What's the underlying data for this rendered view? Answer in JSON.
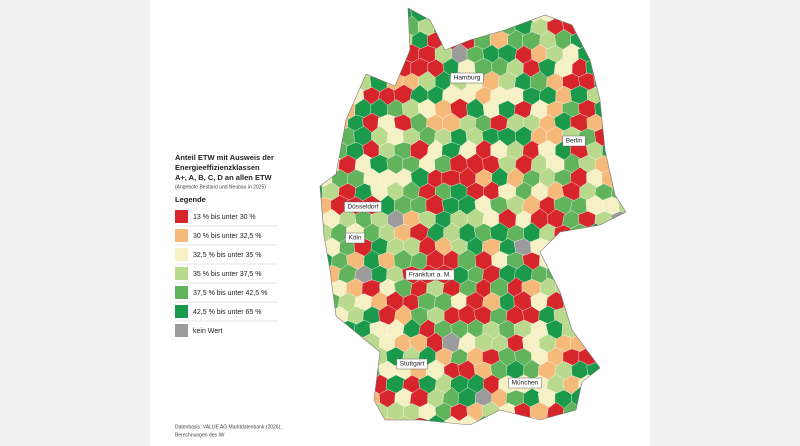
{
  "map": {
    "title_lines": [
      "Anteil ETW mit Ausweis der",
      "Energieeffizienzklassen",
      "A+, A, B, C, D an allen ETW"
    ],
    "subtitle": "(Angebote Bestand und Neubau in 2025)",
    "legend": {
      "title": "Legende",
      "items": [
        {
          "label": "13 % bis unter 30 %",
          "color": "#d7262b"
        },
        {
          "label": "30 % bis unter 32,5 %",
          "color": "#f5b97a"
        },
        {
          "label": "32,5 % bis unter 35 %",
          "color": "#f6f1c4"
        },
        {
          "label": "35 % bis unter 37,5 %",
          "color": "#b9d98c"
        },
        {
          "label": "37,5 % bis unter 42,5 %",
          "color": "#62b45c"
        },
        {
          "label": "42,5 % bis unter 65 %",
          "color": "#1b9a4b"
        },
        {
          "label": "kein Wert",
          "color": "#9b9b9b"
        }
      ]
    },
    "cities": [
      "Hamburg",
      "Berlin",
      "Düsseldorf",
      "Köln",
      "Frankfurt a. M.",
      "Stuttgart",
      "München"
    ],
    "source_lines": [
      "Datenbasis: VALUE AG Marktdatenbank (2026);",
      "Berechnungen des IW"
    ]
  }
}
